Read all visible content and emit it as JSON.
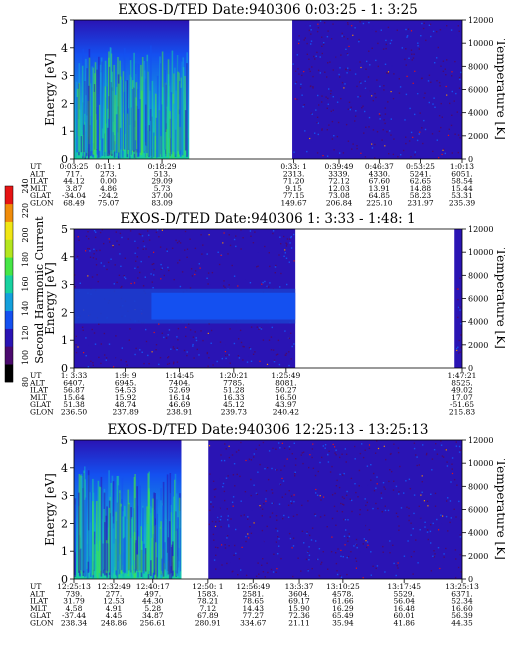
{
  "chart_data": {
    "type": "heatmap",
    "ylabel": "Energy [eV]",
    "y2label": "Temperature [K]",
    "ylim": [
      0,
      5
    ],
    "y2lim": [
      0,
      12000
    ],
    "yticks": [
      "0",
      "1",
      "2",
      "3",
      "4",
      "5"
    ],
    "y2ticks": [
      "0",
      "2000",
      "4000",
      "6000",
      "8000",
      "10000",
      "12000"
    ],
    "colorbar": {
      "label": "Second Harmonic Current",
      "ticks": [
        "80",
        "100",
        "120",
        "140",
        "160",
        "180",
        "200",
        "220",
        "240"
      ],
      "colors": [
        "#000000",
        "#4b0a6e",
        "#2a14b4",
        "#1450f0",
        "#14a0dc",
        "#18d2a0",
        "#46e646",
        "#b4e61e",
        "#f0e614",
        "#f08c0a",
        "#e61414"
      ]
    },
    "row_labels": [
      "UT",
      "ALT",
      "ILAT",
      "MLT",
      "GLAT",
      "GLON"
    ],
    "panels": [
      {
        "title": "EXOS-D/TED   Date:940306  0:03:25 - 1: 3:25",
        "columns": [
          {
            "pos": 0.0,
            "values": [
              "0:03:25",
              "717.",
              "44.12",
              "3.87",
              "-34.04",
              "68.49"
            ]
          },
          {
            "pos": 0.089,
            "values": [
              "0:11: 1",
              "273.",
              "0.00",
              "4.86",
              "-24.2",
              "75.07"
            ]
          },
          {
            "pos": 0.227,
            "values": [
              "0:18:29",
              "513.",
              "29.09",
              "5.73",
              "37.00",
              "83.09"
            ]
          },
          {
            "pos": 0.566,
            "values": [
              "0:33: 1",
              "2313.",
              "71.20",
              "9.15",
              "77.15",
              "149.67"
            ]
          },
          {
            "pos": 0.683,
            "values": [
              "0:39:49",
              "3339.",
              "72.12",
              "12.03",
              "73.08",
              "206.84"
            ]
          },
          {
            "pos": 0.787,
            "values": [
              "0:46:37",
              "4330.",
              "67.60",
              "13.91",
              "64.85",
              "225.10"
            ]
          },
          {
            "pos": 0.893,
            "values": [
              "0:53:25",
              "5241.",
              "62.65",
              "14.88",
              "58.23",
              "231.97"
            ]
          },
          {
            "pos": 1.0,
            "values": [
              "1:0:13",
              "6051.",
              "58.54",
              "15.44",
              "53.31",
              "235.39"
            ]
          }
        ],
        "segments": [
          {
            "start": 0.0,
            "end": 0.297,
            "pattern": "fade"
          },
          {
            "start": 0.297,
            "end": 0.562,
            "pattern": "gap"
          },
          {
            "start": 0.562,
            "end": 1.0,
            "pattern": "noise"
          }
        ]
      },
      {
        "title": "EXOS-D/TED   Date:940306  1: 3:33 - 1:48: 1",
        "columns": [
          {
            "pos": 0.0,
            "values": [
              "1: 3:33",
              "6407.",
              "56.87",
              "15.64",
              "51.38",
              "236.50"
            ]
          },
          {
            "pos": 0.133,
            "values": [
              "1:9: 9",
              "6945.",
              "54.53",
              "15.92",
              "48.74",
              "237.89"
            ]
          },
          {
            "pos": 0.272,
            "values": [
              "1:14:45",
              "7404.",
              "52.69",
              "16.14",
              "46.69",
              "238.91"
            ]
          },
          {
            "pos": 0.412,
            "values": [
              "1:20:21",
              "7785.",
              "51.28",
              "16.33",
              "45.12",
              "239.73"
            ]
          },
          {
            "pos": 0.546,
            "values": [
              "1:25:49",
              "8081.",
              "50.27",
              "16.50",
              "43.97",
              "240.42"
            ]
          },
          {
            "pos": 1.0,
            "values": [
              "1:47:21",
              "8525.",
              "49.02",
              "17.07",
              "-51.65",
              "215.83"
            ]
          }
        ],
        "segments": [
          {
            "start": 0.0,
            "end": 0.57,
            "pattern": "band"
          },
          {
            "start": 0.57,
            "end": 0.98,
            "pattern": "gap"
          },
          {
            "start": 0.98,
            "end": 1.0,
            "pattern": "noise"
          }
        ]
      },
      {
        "title": "EXOS-D/TED   Date:940306  12:25:13 - 13:25:13",
        "columns": [
          {
            "pos": 0.0,
            "values": [
              "12:25:13",
              "739.",
              "31.79",
              "4.58",
              "-37.44",
              "238.34"
            ]
          },
          {
            "pos": 0.103,
            "values": [
              "12:32:49",
              "277.",
              "12.53",
              "4.91",
              "4.45",
              "248.86"
            ]
          },
          {
            "pos": 0.203,
            "values": [
              "12:40:17",
              "497.",
              "44.30",
              "5.28",
              "34.87",
              "256.61"
            ]
          },
          {
            "pos": 0.345,
            "values": [
              "12:50: 1",
              "1583.",
              "78.21",
              "7.12",
              "67.89",
              "280.91"
            ]
          },
          {
            "pos": 0.462,
            "values": [
              "12:56:49",
              "2581.",
              "78.65",
              "14.43",
              "77.27",
              "334.67"
            ]
          },
          {
            "pos": 0.58,
            "values": [
              "13:3:37",
              "3604.",
              "69.17",
              "15.90",
              "72.36",
              "21.11"
            ]
          },
          {
            "pos": 0.693,
            "values": [
              "13:10:25",
              "4578.",
              "61.66",
              "16.29",
              "65.49",
              "35.94"
            ]
          },
          {
            "pos": 0.851,
            "values": [
              "13:17:45",
              "5529.",
              "56.04",
              "16.48",
              "60.01",
              "41.86"
            ]
          },
          {
            "pos": 1.0,
            "values": [
              "13:25:13",
              "6371.",
              "52.34",
              "16.60",
              "56.39",
              "44.35"
            ]
          }
        ],
        "segments": [
          {
            "start": 0.0,
            "end": 0.277,
            "pattern": "fade"
          },
          {
            "start": 0.277,
            "end": 0.346,
            "pattern": "gap"
          },
          {
            "start": 0.346,
            "end": 1.0,
            "pattern": "noise"
          }
        ]
      }
    ]
  }
}
